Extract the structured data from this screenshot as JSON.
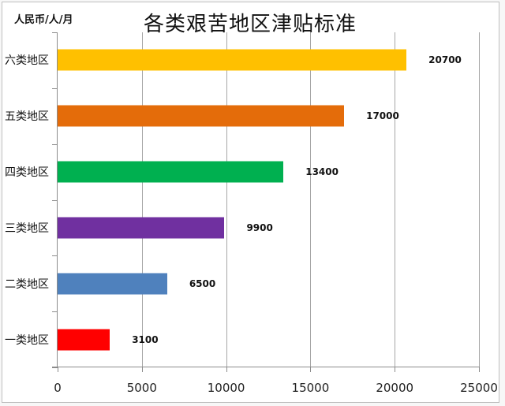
{
  "chart_data": {
    "type": "bar",
    "orientation": "horizontal",
    "title": "各类艰苦地区津贴标准",
    "unit_label": "人民币/人/月",
    "xlabel": "",
    "ylabel": "",
    "categories": [
      "六类地区",
      "五类地区",
      "四类地区",
      "三类地区",
      "二类地区",
      "一类地区"
    ],
    "values": [
      20700,
      17000,
      13400,
      9900,
      6500,
      3100
    ],
    "colors": [
      "#FFC000",
      "#E46C0A",
      "#00B050",
      "#7030A0",
      "#4F81BD",
      "#FF0000"
    ],
    "data_labels": [
      "20700",
      "17000",
      "13400",
      "9900",
      "6500",
      "3100"
    ],
    "xlim": [
      0,
      25000
    ],
    "xticks": [
      "0",
      "5000",
      "10000",
      "15000",
      "20000",
      "25000"
    ],
    "grid": "vertical",
    "legend": "none"
  }
}
